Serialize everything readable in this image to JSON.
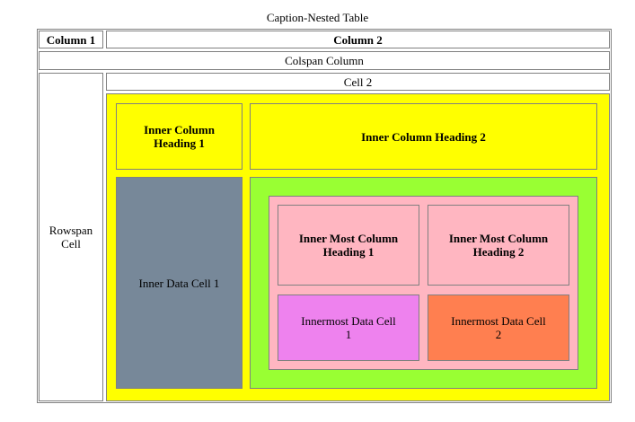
{
  "caption": "Caption-Nested Table",
  "header": {
    "column1": "Column 1",
    "column2": "Column 2"
  },
  "colspan_cell": "Colspan Column",
  "rowspan_cell": "Rowspan Cell",
  "cell2": "Cell 2",
  "inner_table": {
    "heading1": "Inner Column Heading 1",
    "heading2": "Inner Column Heading 2",
    "data_cell1": "Inner Data Cell 1"
  },
  "innermost_table": {
    "heading1": "Inner Most Column Heading 1",
    "heading2": "Inner Most Column Heading 2",
    "data_cell1": "Innermost Data Cell 1",
    "data_cell2": "Innermost Data Cell 2"
  },
  "colors": {
    "yellow": "#ffff00",
    "slate": "#778899",
    "green": "#99ff33",
    "pink": "#ffb6c1",
    "violet": "#ee82ee",
    "coral": "#ff7f50"
  }
}
